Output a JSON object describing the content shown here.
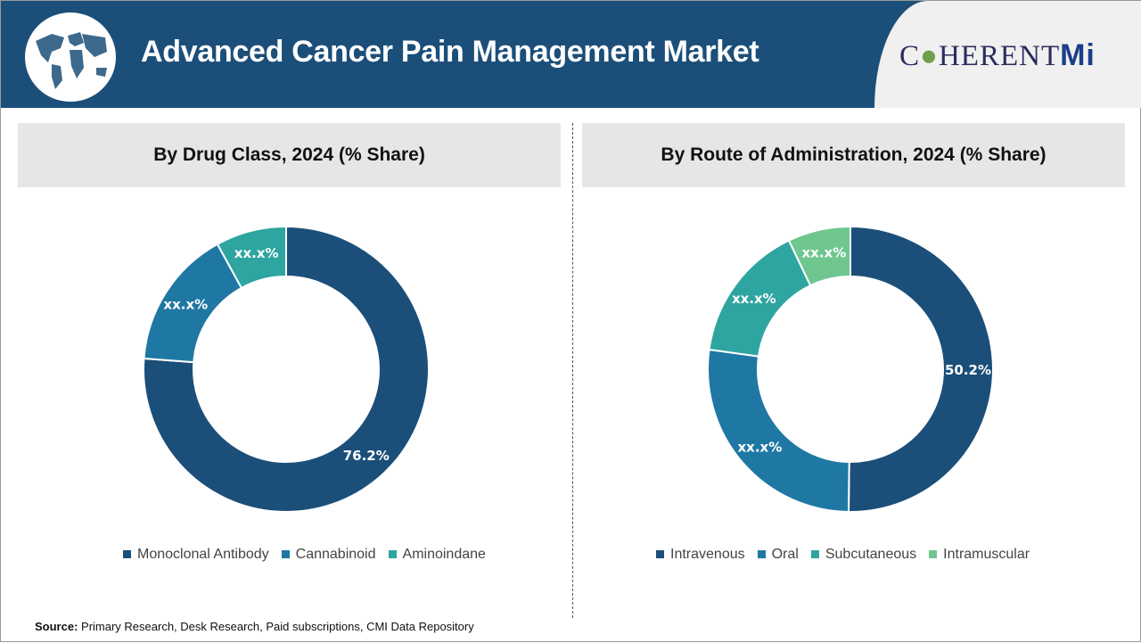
{
  "header": {
    "title": "Advanced Cancer Pain Management Market",
    "brand_text": "C",
    "brand_text2": "HERENT",
    "brand_mi": "Mi"
  },
  "source": {
    "label": "Source:",
    "text": " Primary Research, Desk Research, Paid subscriptions, CMI Data Repository"
  },
  "chart_data": [
    {
      "type": "pie",
      "title": "By Drug Class, 2024 (% Share)",
      "donut": true,
      "categories": [
        "Monoclonal Antibody",
        "Cannabinoid",
        "Aminoindane"
      ],
      "values": [
        76.2,
        15.8,
        8.0
      ],
      "labels": [
        "76.2%",
        "xx.x%",
        "xx.x%"
      ],
      "colors": [
        "#1b4f79",
        "#1f78a3",
        "#2ea5a0"
      ],
      "legend": "bottom"
    },
    {
      "type": "pie",
      "title": "By Route of Administration, 2024 (% Share)",
      "donut": true,
      "categories": [
        "Intravenous",
        "Oral",
        "Subcutaneous",
        "Intramuscular"
      ],
      "values": [
        50.2,
        27.0,
        15.7,
        7.1
      ],
      "labels": [
        "50.2%",
        "xx.x%",
        "xx.x%",
        "xx.x%"
      ],
      "colors": [
        "#1b4f79",
        "#1f78a3",
        "#2ea5a0",
        "#6fc78f"
      ],
      "legend": "bottom"
    }
  ]
}
